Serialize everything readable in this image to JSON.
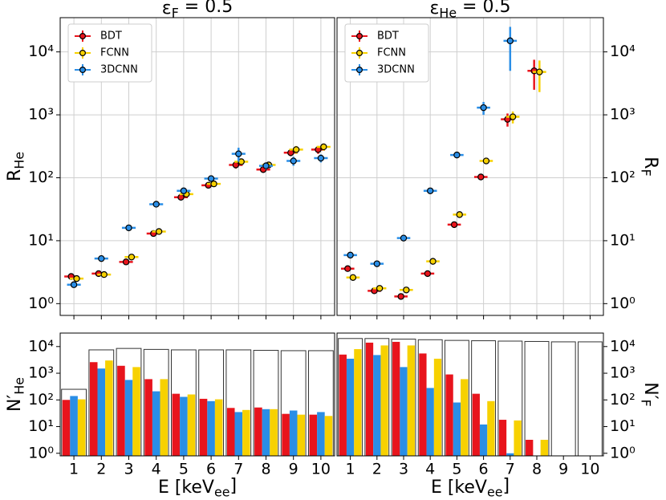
{
  "chart_data": [
    {
      "type": "errorbar",
      "title": {
        "text": "ε",
        "sub": "F",
        "tail": " = 0.5"
      },
      "ylabel": {
        "text": "R",
        "sub": "He"
      },
      "y_side": "left",
      "log_y": true,
      "grid": true,
      "legend": "upper left",
      "x": [
        1,
        2,
        3,
        4,
        5,
        6,
        7,
        8,
        9,
        10
      ],
      "xlim": [
        0.5,
        10.5
      ],
      "xticks": [
        1,
        2,
        3,
        4,
        5,
        6,
        7,
        8,
        9,
        10
      ],
      "ylim": [
        0.65,
        35000
      ],
      "yticks": [
        {
          "value": 1,
          "label": "10⁰"
        },
        {
          "value": 10,
          "label": "10¹"
        },
        {
          "value": 100,
          "label": "10²"
        },
        {
          "value": 1000,
          "label": "10³"
        },
        {
          "value": 10000,
          "label": "10⁴"
        }
      ],
      "series": [
        {
          "name": "BDT",
          "color": "#e8141c",
          "values": [
            2.7,
            3.0,
            4.6,
            13,
            49,
            76,
            160,
            135,
            250,
            280
          ],
          "errors": [
            0.2,
            0.2,
            0.4,
            1,
            4,
            6,
            20,
            15,
            30,
            40
          ]
        },
        {
          "name": "FCNN",
          "color": "#f7d100",
          "values": [
            2.5,
            2.9,
            5.5,
            14,
            55,
            80,
            180,
            160,
            280,
            310
          ],
          "errors": [
            0.2,
            0.2,
            0.5,
            1,
            4,
            6,
            20,
            15,
            40,
            40
          ]
        },
        {
          "name": "3DCNN",
          "color": "#2a8ee6",
          "values": [
            2.0,
            5.2,
            16,
            38,
            62,
            97,
            240,
            155,
            185,
            205
          ],
          "errors": [
            0.15,
            0.4,
            1.5,
            3,
            8,
            10,
            60,
            20,
            30,
            30
          ]
        }
      ]
    },
    {
      "type": "errorbar",
      "title": {
        "text": "ε",
        "sub": "He",
        "tail": " = 0.5"
      },
      "ylabel": {
        "text": "R",
        "sub": "F"
      },
      "y_side": "right",
      "log_y": true,
      "grid": true,
      "legend": "upper left",
      "x": [
        1,
        2,
        3,
        4,
        5,
        6,
        7,
        8,
        9,
        10
      ],
      "xlim": [
        0.5,
        10.5
      ],
      "xticks": [
        1,
        2,
        3,
        4,
        5,
        6,
        7,
        8,
        9,
        10
      ],
      "ylim": [
        0.65,
        35000
      ],
      "yticks": [
        {
          "value": 1,
          "label": "10⁰"
        },
        {
          "value": 10,
          "label": "10¹"
        },
        {
          "value": 100,
          "label": "10²"
        },
        {
          "value": 1000,
          "label": "10³"
        },
        {
          "value": 10000,
          "label": "10⁴"
        }
      ],
      "series": [
        {
          "name": "BDT",
          "color": "#e8141c",
          "values": [
            3.6,
            1.6,
            1.3,
            3.0,
            18,
            103,
            850,
            5000,
            null,
            null
          ],
          "errors": [
            0.3,
            0.15,
            0.1,
            0.3,
            2,
            10,
            200,
            2500,
            null,
            null
          ]
        },
        {
          "name": "FCNN",
          "color": "#f7d100",
          "values": [
            2.6,
            1.75,
            1.65,
            4.7,
            26,
            185,
            930,
            4800,
            null,
            null
          ],
          "errors": [
            0.2,
            0.15,
            0.15,
            0.4,
            2,
            15,
            200,
            2500,
            null,
            null
          ]
        },
        {
          "name": "3DCNN",
          "color": "#2a8ee6",
          "values": [
            5.9,
            4.3,
            11,
            62,
            230,
            1300,
            15000,
            null,
            null,
            null
          ],
          "errors": [
            0.5,
            0.4,
            1,
            5,
            20,
            300,
            10000,
            null,
            null,
            null
          ]
        }
      ]
    },
    {
      "type": "bar",
      "ylabel": {
        "text": "N′",
        "sub": "He"
      },
      "xlabel": {
        "text": "E [keV",
        "sub": "ee",
        "tail": "]"
      },
      "y_side": "left",
      "log_y": true,
      "x": [
        1,
        2,
        3,
        4,
        5,
        6,
        7,
        8,
        9,
        10
      ],
      "xlim": [
        0.5,
        10.5
      ],
      "xticks": [
        1,
        2,
        3,
        4,
        5,
        6,
        7,
        8,
        9,
        10
      ],
      "ylim": [
        0.8,
        32000
      ],
      "yticks": [
        {
          "value": 1,
          "label": "10⁰"
        },
        {
          "value": 10,
          "label": "10¹"
        },
        {
          "value": 100,
          "label": "10²"
        },
        {
          "value": 1000,
          "label": "10³"
        },
        {
          "value": 10000,
          "label": "10⁴"
        }
      ],
      "totals": [
        250,
        7500,
        8500,
        7800,
        7500,
        7500,
        7500,
        7200,
        7000,
        7000
      ],
      "totals_color": "#333333",
      "series": [
        {
          "color": "#e8141c",
          "values": [
            100,
            2600,
            1900,
            600,
            170,
            110,
            50,
            52,
            30,
            28
          ]
        },
        {
          "color": "#2a8ee6",
          "values": [
            140,
            1500,
            560,
            210,
            130,
            90,
            35,
            45,
            40,
            35
          ]
        },
        {
          "color": "#f7d100",
          "values": [
            105,
            3000,
            1700,
            600,
            160,
            105,
            42,
            45,
            28,
            25
          ]
        }
      ]
    },
    {
      "type": "bar",
      "ylabel": {
        "text": "N′",
        "sub": "F"
      },
      "xlabel": {
        "text": "E [keV",
        "sub": "ee",
        "tail": "]"
      },
      "y_side": "right",
      "log_y": true,
      "x": [
        1,
        2,
        3,
        4,
        5,
        6,
        7,
        8,
        9,
        10
      ],
      "xlim": [
        0.5,
        10.5
      ],
      "xticks": [
        1,
        2,
        3,
        4,
        5,
        6,
        7,
        8,
        9,
        10
      ],
      "ylim": [
        0.8,
        32000
      ],
      "yticks": [
        {
          "value": 1,
          "label": "10⁰"
        },
        {
          "value": 10,
          "label": "10¹"
        },
        {
          "value": 100,
          "label": "10²"
        },
        {
          "value": 1000,
          "label": "10³"
        },
        {
          "value": 10000,
          "label": "10⁴"
        }
      ],
      "totals": [
        20000,
        20000,
        19000,
        18000,
        17000,
        16500,
        16000,
        15500,
        15000,
        15000
      ],
      "totals_color": "#333333",
      "series": [
        {
          "color": "#e8141c",
          "values": [
            5000,
            14000,
            15000,
            5500,
            900,
            170,
            18,
            3.2,
            null,
            null
          ]
        },
        {
          "color": "#2a8ee6",
          "values": [
            3500,
            4800,
            1700,
            280,
            80,
            12,
            1,
            null,
            null,
            null
          ]
        },
        {
          "color": "#f7d100",
          "values": [
            8000,
            11000,
            11000,
            3500,
            600,
            90,
            17,
            3.2,
            null,
            null
          ]
        }
      ]
    }
  ]
}
